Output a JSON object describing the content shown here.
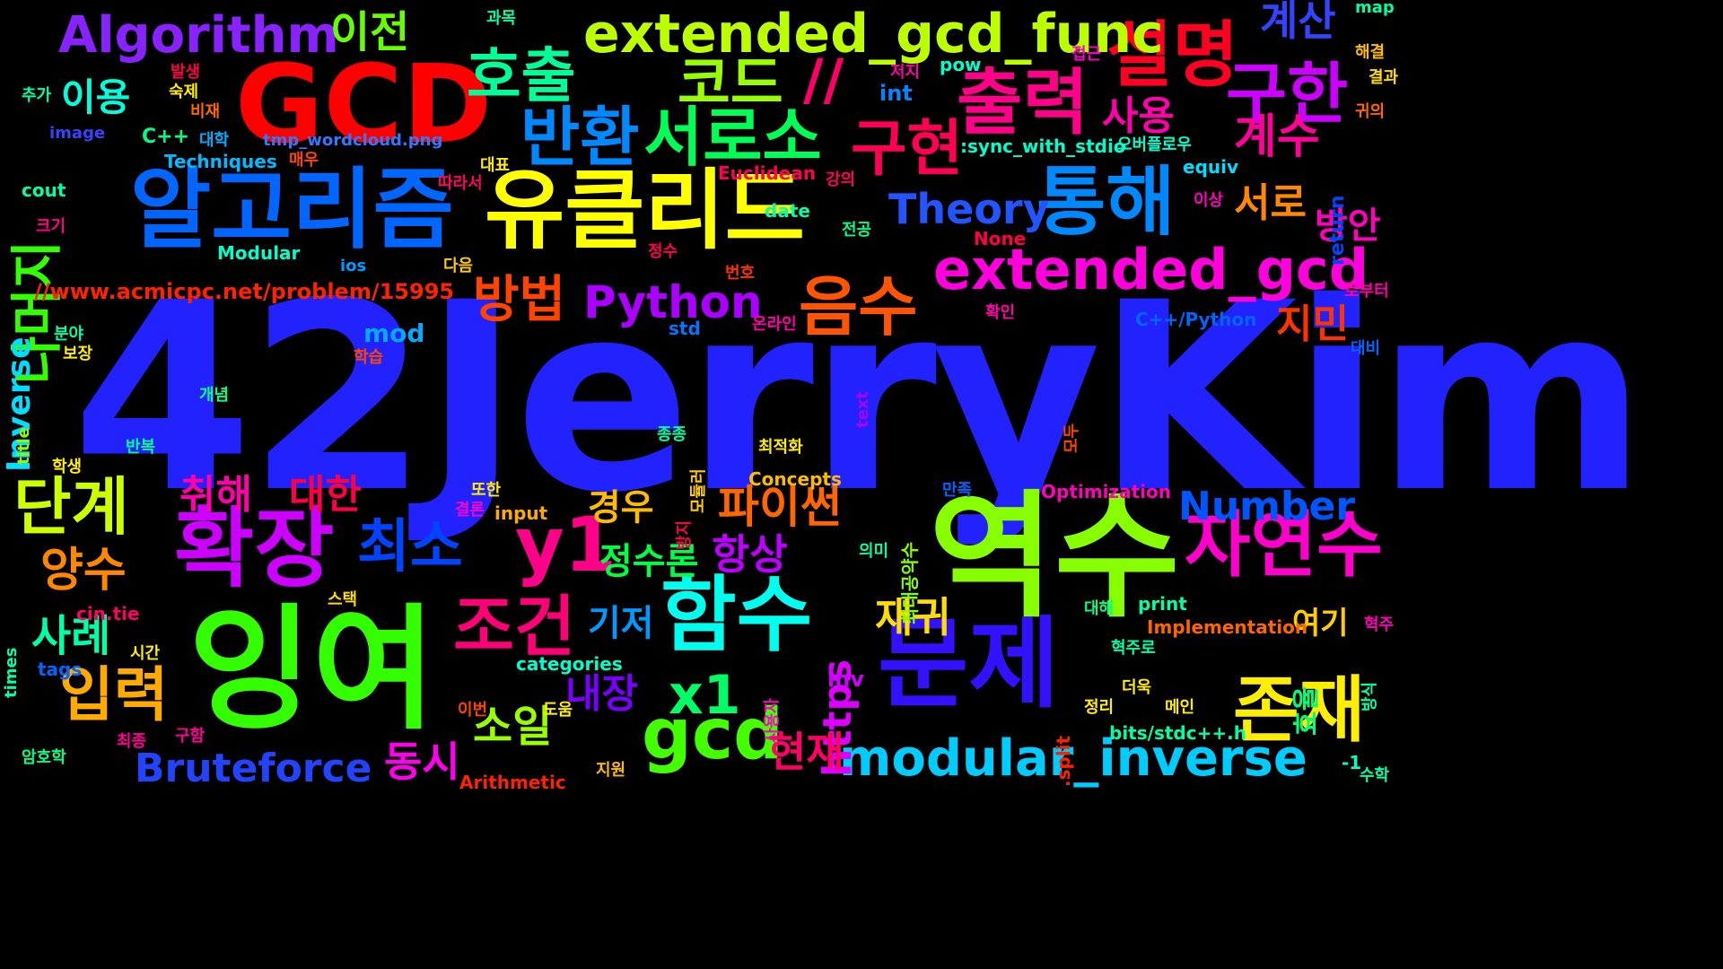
{
  "image_title": "tmp_wordcloud.png",
  "background_color": "#000000",
  "words": [
    {
      "text": "42JerryKim",
      "color": "#2222ff"
    },
    {
      "text": "역수",
      "color": "#88ff00"
    },
    {
      "text": "잉여",
      "color": "#33ff00"
    },
    {
      "text": "GCD",
      "color": "#ff0000"
    },
    {
      "text": "알고리즘",
      "color": "#0066ff"
    },
    {
      "text": "유클리드",
      "color": "#ffff00"
    },
    {
      "text": "확장",
      "color": "#cc00ff"
    },
    {
      "text": "문제",
      "color": "#3311ff"
    },
    {
      "text": "함수",
      "color": "#00ffee"
    },
    {
      "text": "통해",
      "color": "#0088ff"
    },
    {
      "text": "출력",
      "color": "#ff0088"
    },
    {
      "text": "설명",
      "color": "#ff0022"
    },
    {
      "text": "구한",
      "color": "#cc00ff"
    },
    {
      "text": "자연수",
      "color": "#ff00cc"
    },
    {
      "text": "존재",
      "color": "#ffee00"
    },
    {
      "text": "gcd",
      "color": "#44ff00"
    },
    {
      "text": "y1",
      "color": "#ff0088"
    },
    {
      "text": "x1",
      "color": "#00ff66"
    },
    {
      "text": "extended_gcd_func",
      "color": "#bbff00"
    },
    {
      "text": "extended_gcd",
      "color": "#ff00dd"
    },
    {
      "text": "modular_inverse",
      "color": "#00ccff"
    },
    {
      "text": "Algorithm",
      "color": "#8822ff"
    },
    {
      "text": "호출",
      "color": "#00ff99"
    },
    {
      "text": "코드",
      "color": "#99ff00"
    },
    {
      "text": "//",
      "color": "#ff0066"
    },
    {
      "text": "반환",
      "color": "#0088ff"
    },
    {
      "text": "서로소",
      "color": "#00ff55"
    },
    {
      "text": "구현",
      "color": "#ff0055"
    },
    {
      "text": "음수",
      "color": "#ff5500"
    },
    {
      "text": "방법",
      "color": "#ff4400"
    },
    {
      "text": "Python",
      "color": "#aa00ff"
    },
    {
      "text": "Theory",
      "color": "#2255ff"
    },
    {
      "text": "계수",
      "color": "#ff0099"
    },
    {
      "text": "서로",
      "color": "#ff8800"
    },
    {
      "text": "방안",
      "color": "#ff00bb"
    },
    {
      "text": "사용",
      "color": "#ff00aa"
    },
    {
      "text": "계산",
      "color": "#3344ff"
    },
    {
      "text": "이전",
      "color": "#66ff00"
    },
    {
      "text": "이용",
      "color": "#00ffdd"
    },
    {
      "text": "나머지",
      "color": "#33ff00"
    },
    {
      "text": "Inverse",
      "color": "#00ddff"
    },
    {
      "text": "단계",
      "color": "#ccff00"
    },
    {
      "text": "양수",
      "color": "#ff8800"
    },
    {
      "text": "입력",
      "color": "#ffaa00"
    },
    {
      "text": "사례",
      "color": "#00ffaa"
    },
    {
      "text": "최소",
      "color": "#0044ff"
    },
    {
      "text": "조건",
      "color": "#ff0077"
    },
    {
      "text": "취해",
      "color": "#ff00aa"
    },
    {
      "text": "대한",
      "color": "#ff0044"
    },
    {
      "text": "경우",
      "color": "#ffbb00"
    },
    {
      "text": "정수론",
      "color": "#00ff44"
    },
    {
      "text": "항상",
      "color": "#bb00ff"
    },
    {
      "text": "파이썬",
      "color": "#ff6600"
    },
    {
      "text": "Number",
      "color": "#0055ff"
    },
    {
      "text": "지민",
      "color": "#ff3300"
    },
    {
      "text": "https",
      "color": "#dd00ff"
    },
    {
      "text": "재귀",
      "color": "#ffdd00"
    },
    {
      "text": "기저",
      "color": "#0099ff"
    },
    {
      "text": "내장",
      "color": "#7700ff"
    },
    {
      "text": "소일",
      "color": "#99ff00"
    },
    {
      "text": "동시",
      "color": "#ff00ee"
    },
    {
      "text": "현재",
      "color": "#ff0066"
    },
    {
      "text": "여기",
      "color": "#ffcc00"
    },
    {
      "text": "효율",
      "color": "#00ff77"
    },
    {
      "text": "mod",
      "color": "#00aaff"
    },
    {
      "text": "Bruteforce",
      "color": "#2244ff"
    },
    {
      "text": "//www.acmicpc.net/problem/15995",
      "color": "#ff2200"
    },
    {
      "text": "inv",
      "color": "#cc00ff"
    },
    {
      "text": "C++",
      "color": "#00ff88"
    },
    {
      "text": "cout",
      "color": "#00ffaa"
    },
    {
      "text": "image",
      "color": "#3344ff"
    },
    {
      "text": "Techniques",
      "color": "#00bbff"
    },
    {
      "text": "tmp_wordcloud.png",
      "color": "#3377ff"
    },
    {
      "text": "Modular",
      "color": "#00ffcc"
    },
    {
      "text": "ios",
      "color": "#0099ff"
    },
    {
      "text": "std",
      "color": "#0077ff"
    },
    {
      "text": "date",
      "color": "#00ffaa"
    },
    {
      "text": "Euclidean",
      "color": "#ff0055"
    },
    {
      "text": "None",
      "color": "#ff0044"
    },
    {
      "text": "int",
      "color": "#0088ff"
    },
    {
      "text": "pow",
      "color": "#00ffcc"
    },
    {
      "text": "equiv",
      "color": "#00ddff"
    },
    {
      "text": ":sync_with_stdio",
      "color": "#00ffcc"
    },
    {
      "text": "C++/Python",
      "color": "#0066ff"
    },
    {
      "text": "return",
      "color": "#0044ff"
    },
    {
      "text": "map",
      "color": "#00ffaa"
    },
    {
      "text": "title",
      "color": "#88ff00"
    },
    {
      "text": "text",
      "color": "#aa00ff"
    },
    {
      "text": "times",
      "color": "#00ffaa"
    },
    {
      "text": "cin.tie",
      "color": "#ff0066"
    },
    {
      "text": "tags",
      "color": "#0066ff"
    },
    {
      "text": "categories",
      "color": "#00ffcc"
    },
    {
      "text": "input",
      "color": "#ffaa00"
    },
    {
      "text": "Concepts",
      "color": "#ffbb00"
    },
    {
      "text": "Optimization",
      "color": "#ff00bb"
    },
    {
      "text": "print",
      "color": "#00ffaa"
    },
    {
      "text": "Implementation",
      "color": "#ff6600"
    },
    {
      "text": ".split",
      "color": "#ff2200"
    },
    {
      "text": "bits/stdc++.h",
      "color": "#00ffaa"
    },
    {
      "text": "Arithmetic",
      "color": "#ff2200"
    },
    {
      "text": "-1",
      "color": "#00ffcc"
    },
    {
      "text": "과목",
      "color": "#00ffaa"
    },
    {
      "text": "발생",
      "color": "#ff0044"
    },
    {
      "text": "숙제",
      "color": "#ffee00"
    },
    {
      "text": "비재",
      "color": "#ff6600"
    },
    {
      "text": "대학",
      "color": "#00aaff"
    },
    {
      "text": "매우",
      "color": "#ff4400"
    },
    {
      "text": "추가",
      "color": "#00ffaa"
    },
    {
      "text": "대표",
      "color": "#ffee00"
    },
    {
      "text": "따라서",
      "color": "#ff0066"
    },
    {
      "text": "크기",
      "color": "#ff0088"
    },
    {
      "text": "저지",
      "color": "#ff00aa"
    },
    {
      "text": "접근",
      "color": "#ff00cc"
    },
    {
      "text": "해결",
      "color": "#ffbb00"
    },
    {
      "text": "결과",
      "color": "#ffdd00"
    },
    {
      "text": "귀의",
      "color": "#ff6600"
    },
    {
      "text": "오버플로우",
      "color": "#00ffcc"
    },
    {
      "text": "강의",
      "color": "#ff0055"
    },
    {
      "text": "전공",
      "color": "#00ff88"
    },
    {
      "text": "정수",
      "color": "#ff0055"
    },
    {
      "text": "번호",
      "color": "#ff3300"
    },
    {
      "text": "다음",
      "color": "#ffcc00"
    },
    {
      "text": "이상",
      "color": "#ff00bb"
    },
    {
      "text": "로부터",
      "color": "#ff00aa"
    },
    {
      "text": "확인",
      "color": "#ff00aa"
    },
    {
      "text": "온라인",
      "color": "#ff00aa"
    },
    {
      "text": "분야",
      "color": "#00ffaa"
    },
    {
      "text": "보장",
      "color": "#ffee00"
    },
    {
      "text": "학습",
      "color": "#ff4400"
    },
    {
      "text": "대비",
      "color": "#0066ff"
    },
    {
      "text": "개념",
      "color": "#00ff88"
    },
    {
      "text": "모두",
      "color": "#ff4400"
    },
    {
      "text": "반복",
      "color": "#00ff88"
    },
    {
      "text": "종종",
      "color": "#00ffaa"
    },
    {
      "text": "모듈러",
      "color": "#ffcc00"
    },
    {
      "text": "최적화",
      "color": "#ffee00"
    },
    {
      "text": "학생",
      "color": "#ffee00"
    },
    {
      "text": "최대공약수",
      "color": "#88ff00"
    },
    {
      "text": "또한",
      "color": "#ffee00"
    },
    {
      "text": "결론",
      "color": "#ff00cc"
    },
    {
      "text": "만족",
      "color": "#0066ff"
    },
    {
      "text": "방지",
      "color": "#ff0044"
    },
    {
      "text": "의미",
      "color": "#00ffaa"
    },
    {
      "text": "스택",
      "color": "#ffdd00"
    },
    {
      "text": "대해",
      "color": "#00ff88"
    },
    {
      "text": "혁주",
      "color": "#ff00bb"
    },
    {
      "text": "혁주로",
      "color": "#00ffaa"
    },
    {
      "text": "시간",
      "color": "#ffee00"
    },
    {
      "text": "방식",
      "color": "#00ffaa"
    },
    {
      "text": "사용자",
      "color": "#ff00cc"
    },
    {
      "text": "이번",
      "color": "#ff4400"
    },
    {
      "text": "도움",
      "color": "#ffee00"
    },
    {
      "text": "더욱",
      "color": "#ffee00"
    },
    {
      "text": "정리",
      "color": "#ffee00"
    },
    {
      "text": "메인",
      "color": "#ffee00"
    },
    {
      "text": "구함",
      "color": "#ff0099"
    },
    {
      "text": "최종",
      "color": "#ff0099"
    },
    {
      "text": "암호학",
      "color": "#00ff88"
    },
    {
      "text": "지원",
      "color": "#ffbb00"
    },
    {
      "text": "수학",
      "color": "#00ffaa"
    }
  ]
}
